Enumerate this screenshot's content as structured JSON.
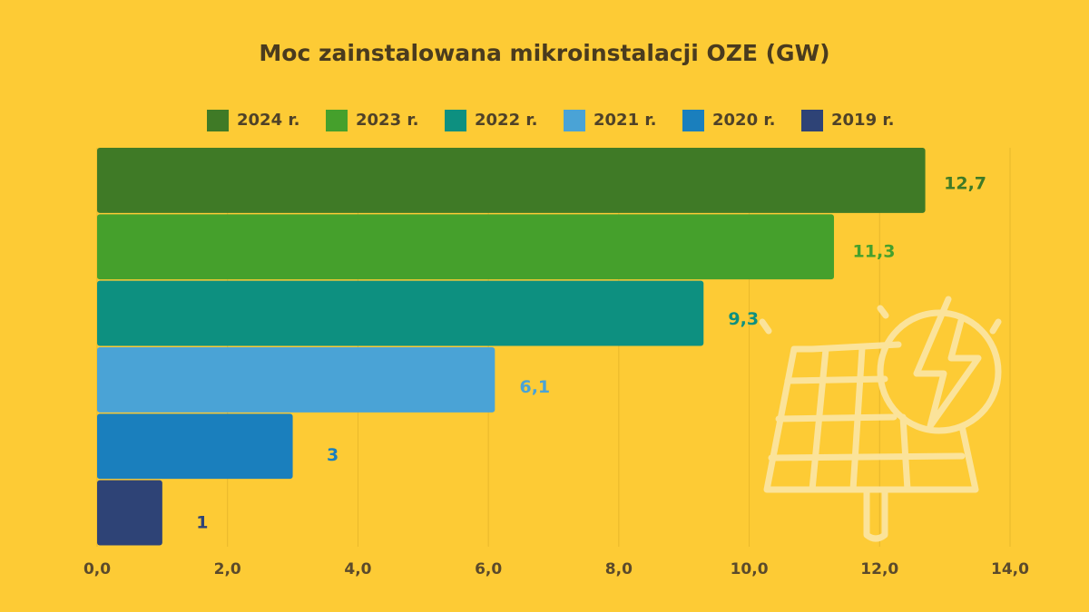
{
  "chart_data": {
    "type": "bar",
    "orientation": "horizontal",
    "title": "Moc zainstalowana mikroinstalacji OZE (GW)",
    "categories": [
      null
    ],
    "series": [
      {
        "name": "2024 r.",
        "color": "#3f7a26",
        "values": [
          12.7
        ],
        "value_labels": [
          "12,7"
        ]
      },
      {
        "name": "2023 r.",
        "color": "#45a02c",
        "values": [
          11.3
        ],
        "value_labels": [
          "11,3"
        ]
      },
      {
        "name": "2022 r.",
        "color": "#0d9080",
        "values": [
          9.3
        ],
        "value_labels": [
          "9,3"
        ]
      },
      {
        "name": "2021 r.",
        "color": "#4aa3d6",
        "values": [
          6.1
        ],
        "value_labels": [
          "6,1"
        ]
      },
      {
        "name": "2020 r.",
        "color": "#1a7fbd",
        "values": [
          3
        ],
        "value_labels": [
          "3"
        ]
      },
      {
        "name": "2019 r.",
        "color": "#2e4376",
        "values": [
          1
        ],
        "value_labels": [
          "1"
        ]
      }
    ],
    "xlim": [
      0,
      14
    ],
    "xticks": [
      {
        "value": 0,
        "label": "0,0"
      },
      {
        "value": 2,
        "label": "2,0"
      },
      {
        "value": 4,
        "label": "4,0"
      },
      {
        "value": 6,
        "label": "6,0"
      },
      {
        "value": 8,
        "label": "8,0"
      },
      {
        "value": 10,
        "label": "10,0"
      },
      {
        "value": 12,
        "label": "12,0"
      },
      {
        "value": 14,
        "label": "14,0"
      }
    ],
    "grid": true,
    "legend": "top"
  }
}
